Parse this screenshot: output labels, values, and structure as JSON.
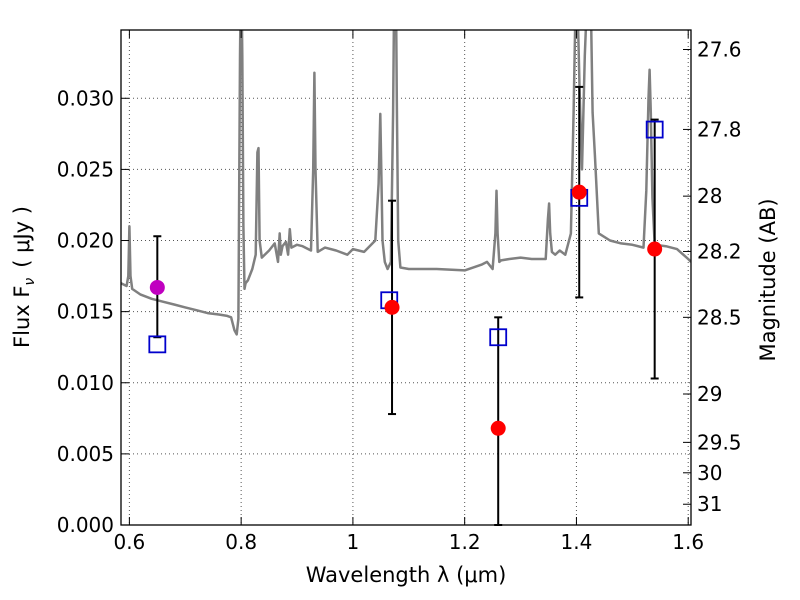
{
  "chart_data": {
    "type": "scatter",
    "title": "",
    "xlabel": "Wavelength  λ (μm)",
    "ylabel": "Flux  F",
    "ylabel_sub": "ν",
    "ylabel_unit": "( μJy )",
    "y2label": "Magnitude (AB)",
    "xlim": [
      0.585,
      1.605
    ],
    "ylim": [
      0.0,
      0.0348
    ],
    "grid": true,
    "x_ticks": [
      {
        "value": 0.6,
        "label": "0.6"
      },
      {
        "value": 0.8,
        "label": "0.8"
      },
      {
        "value": 1.0,
        "label": "1"
      },
      {
        "value": 1.2,
        "label": "1.2"
      },
      {
        "value": 1.4,
        "label": "1.4"
      },
      {
        "value": 1.6,
        "label": "1.6"
      }
    ],
    "y_ticks": [
      {
        "value": 0.0,
        "label": "0.000"
      },
      {
        "value": 0.005,
        "label": "0.005"
      },
      {
        "value": 0.01,
        "label": "0.010"
      },
      {
        "value": 0.015,
        "label": "0.015"
      },
      {
        "value": 0.02,
        "label": "0.020"
      },
      {
        "value": 0.025,
        "label": "0.025"
      },
      {
        "value": 0.03,
        "label": "0.030"
      }
    ],
    "y2_ticks": [
      {
        "label": "27.6",
        "flux": 0.03343
      },
      {
        "label": "27.8",
        "flux": 0.02781
      },
      {
        "label": "28",
        "flux": 0.02312
      },
      {
        "label": "28.2",
        "flux": 0.01923
      },
      {
        "label": "28.5",
        "flux": 0.0146
      },
      {
        "label": "29",
        "flux": 0.00921
      },
      {
        "label": "29.5",
        "flux": 0.00581
      },
      {
        "label": "30",
        "flux": 0.00367
      },
      {
        "label": "31",
        "flux": 0.00146
      }
    ],
    "colors": {
      "spectrum": "#808080",
      "model": "#0000cc",
      "observed": "#ff0000",
      "observed_alt": "#c000c0",
      "errorbar": "#000000",
      "grid": "#555555"
    },
    "model_spectrum": {
      "x": [
        0.585,
        0.595,
        0.598,
        0.6,
        0.602,
        0.605,
        0.62,
        0.64,
        0.66,
        0.68,
        0.7,
        0.72,
        0.74,
        0.76,
        0.775,
        0.782,
        0.788,
        0.792,
        0.795,
        0.798,
        0.8,
        0.802,
        0.804,
        0.806,
        0.808,
        0.812,
        0.82,
        0.826,
        0.829,
        0.831,
        0.833,
        0.837,
        0.85,
        0.86,
        0.866,
        0.869,
        0.871,
        0.874,
        0.88,
        0.884,
        0.887,
        0.89,
        0.9,
        0.91,
        0.925,
        0.929,
        0.931,
        0.933,
        0.937,
        0.95,
        0.97,
        0.99,
        1.0,
        1.02,
        1.04,
        1.046,
        1.049,
        1.051,
        1.053,
        1.057,
        1.062,
        1.068,
        1.072,
        1.0745,
        1.0765,
        1.0785,
        1.081,
        1.085,
        1.1,
        1.15,
        1.2,
        1.23,
        1.24,
        1.25,
        1.255,
        1.257,
        1.259,
        1.262,
        1.265,
        1.28,
        1.3,
        1.32,
        1.345,
        1.349,
        1.351,
        1.353,
        1.356,
        1.362,
        1.37,
        1.38,
        1.39,
        1.395,
        1.399,
        1.401,
        1.403,
        1.406,
        1.41,
        1.415,
        1.42,
        1.422,
        1.424,
        1.426,
        1.429,
        1.433,
        1.44,
        1.46,
        1.48,
        1.5,
        1.52,
        1.525,
        1.529,
        1.531,
        1.533,
        1.536,
        1.54,
        1.56,
        1.58,
        1.6,
        1.605
      ],
      "y": [
        0.017,
        0.0168,
        0.0175,
        0.021,
        0.0175,
        0.0166,
        0.0162,
        0.0159,
        0.0157,
        0.0155,
        0.0153,
        0.0151,
        0.0149,
        0.0148,
        0.0147,
        0.0146,
        0.0137,
        0.0134,
        0.0145,
        0.033,
        0.04,
        0.033,
        0.021,
        0.0166,
        0.017,
        0.0172,
        0.018,
        0.019,
        0.0262,
        0.0265,
        0.02,
        0.0188,
        0.0193,
        0.0198,
        0.0185,
        0.0205,
        0.019,
        0.0196,
        0.0199,
        0.019,
        0.0208,
        0.0195,
        0.0197,
        0.0196,
        0.0193,
        0.025,
        0.0318,
        0.025,
        0.0192,
        0.0195,
        0.0193,
        0.019,
        0.0194,
        0.0192,
        0.02,
        0.024,
        0.0289,
        0.0245,
        0.02,
        0.0185,
        0.018,
        0.0185,
        0.029,
        0.04,
        0.04,
        0.03,
        0.02,
        0.0181,
        0.018,
        0.018,
        0.0179,
        0.0183,
        0.0185,
        0.018,
        0.0205,
        0.0235,
        0.0205,
        0.0185,
        0.0186,
        0.0187,
        0.0188,
        0.0187,
        0.0187,
        0.0215,
        0.0226,
        0.0205,
        0.0192,
        0.019,
        0.0193,
        0.019,
        0.0205,
        0.029,
        0.038,
        0.04,
        0.035,
        0.03,
        0.025,
        0.033,
        0.038,
        0.04,
        0.04,
        0.036,
        0.029,
        0.026,
        0.0205,
        0.02,
        0.0198,
        0.0197,
        0.0195,
        0.0235,
        0.03,
        0.032,
        0.029,
        0.023,
        0.0197,
        0.0196,
        0.0194,
        0.0187,
        0.0185
      ]
    },
    "model_photometry": {
      "x": [
        0.65,
        1.065,
        1.26,
        1.405,
        1.54
      ],
      "y": [
        0.0127,
        0.0158,
        0.0132,
        0.023,
        0.0278
      ]
    },
    "observed": [
      {
        "x": 0.65,
        "y": 0.0167,
        "err_low": 0.0035,
        "err_high": 0.0036,
        "alt": true
      },
      {
        "x": 1.07,
        "y": 0.0153,
        "err_low": 0.0075,
        "err_high": 0.0075,
        "alt": false
      },
      {
        "x": 1.26,
        "y": 0.0068,
        "err_low": 0.0068,
        "err_high": 0.0078,
        "alt": false
      },
      {
        "x": 1.405,
        "y": 0.0234,
        "err_low": 0.0074,
        "err_high": 0.0074,
        "alt": false
      },
      {
        "x": 1.54,
        "y": 0.0194,
        "err_low": 0.0091,
        "err_high": 0.0091,
        "alt": false
      }
    ]
  }
}
